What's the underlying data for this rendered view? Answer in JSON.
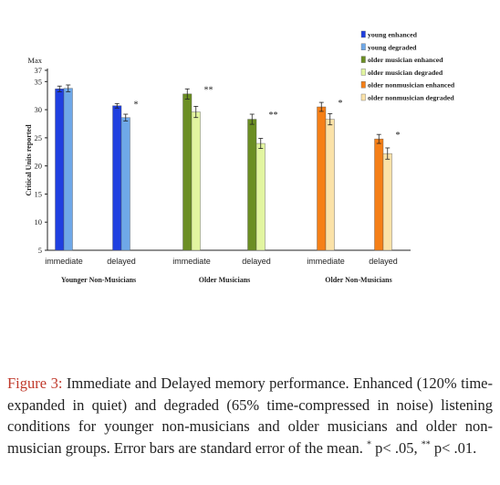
{
  "chart_data": {
    "type": "bar",
    "ylabel": "Critical Units reported",
    "ymax_label": "Max",
    "ylim": [
      5,
      37
    ],
    "yticks": [
      5,
      10,
      15,
      20,
      25,
      30,
      35,
      37
    ],
    "groups": [
      {
        "label": "Younger Non-Musicians",
        "subgroups": [
          {
            "label": "immediate",
            "bars": [
              {
                "series": "young enhanced",
                "value": 33.7,
                "err": 0.5
              },
              {
                "series": "young degraded",
                "value": 33.8,
                "err": 0.6
              }
            ],
            "sig": ""
          },
          {
            "label": "delayed",
            "bars": [
              {
                "series": "young enhanced",
                "value": 30.7,
                "err": 0.4
              },
              {
                "series": "young degraded",
                "value": 28.6,
                "err": 0.6
              }
            ],
            "sig": "*"
          }
        ]
      },
      {
        "label": "Older Musicians",
        "subgroups": [
          {
            "label": "immediate",
            "bars": [
              {
                "series": "older musician enhanced",
                "value": 32.8,
                "err": 0.9
              },
              {
                "series": "older musician degraded",
                "value": 29.6,
                "err": 1.0
              }
            ],
            "sig": "**"
          },
          {
            "label": "delayed",
            "bars": [
              {
                "series": "older musician enhanced",
                "value": 28.3,
                "err": 0.9
              },
              {
                "series": "older musician degraded",
                "value": 24.0,
                "err": 0.9
              }
            ],
            "sig": "**"
          }
        ]
      },
      {
        "label": "Older Non-Musicians",
        "subgroups": [
          {
            "label": "immediate",
            "bars": [
              {
                "series": "older nonmusician enhanced",
                "value": 30.5,
                "err": 0.8
              },
              {
                "series": "older nonmusician degraded",
                "value": 28.3,
                "err": 1.0
              }
            ],
            "sig": "*"
          },
          {
            "label": "delayed",
            "bars": [
              {
                "series": "older nonmusician enhanced",
                "value": 24.8,
                "err": 0.8
              },
              {
                "series": "older nonmusician degraded",
                "value": 22.2,
                "err": 1.0
              }
            ],
            "sig": "*"
          }
        ]
      }
    ],
    "legend": [
      {
        "name": "young enhanced",
        "color": "#1f3fe0"
      },
      {
        "name": "young degraded",
        "color": "#6fa8e8"
      },
      {
        "name": "older musician enhanced",
        "color": "#6b8e23"
      },
      {
        "name": "older musician degraded",
        "color": "#e2f5a0"
      },
      {
        "name": "older nonmusician enhanced",
        "color": "#f57f17"
      },
      {
        "name": "older nonmusician degraded",
        "color": "#fbe2a8"
      }
    ],
    "legend_position": "top-right"
  },
  "caption": {
    "label": "Figure 3:",
    "text": " Immediate and Delayed memory performance. Enhanced (120% time-expanded in quiet) and degraded (65% time-compressed in noise) listening conditions for younger non-musicians and older musicians and older non-musician groups. Error bars are standard error of the mean. ",
    "sig1_mark": "*",
    "sig1_text": " p< .05, ",
    "sig2_mark": "**",
    "sig2_text": " p< .01."
  }
}
